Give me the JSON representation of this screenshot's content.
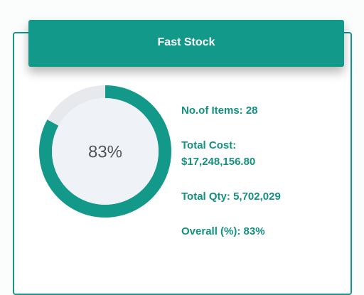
{
  "header": {
    "title": "Fast Stock"
  },
  "chart_data": {
    "type": "donut",
    "values": [
      83
    ],
    "value_labels": [
      "83%"
    ],
    "range": [
      0,
      100
    ],
    "color": "#13998a",
    "track_color": "#e7e9ed"
  },
  "stats": [
    {
      "label": "No.of Items:",
      "value": "28"
    },
    {
      "label": "Total Cost:",
      "value": "$17,248,156.80"
    },
    {
      "label": "Total Qty:",
      "value": "5,702,029"
    },
    {
      "label": "Overall (%):",
      "value": "83%"
    }
  ]
}
